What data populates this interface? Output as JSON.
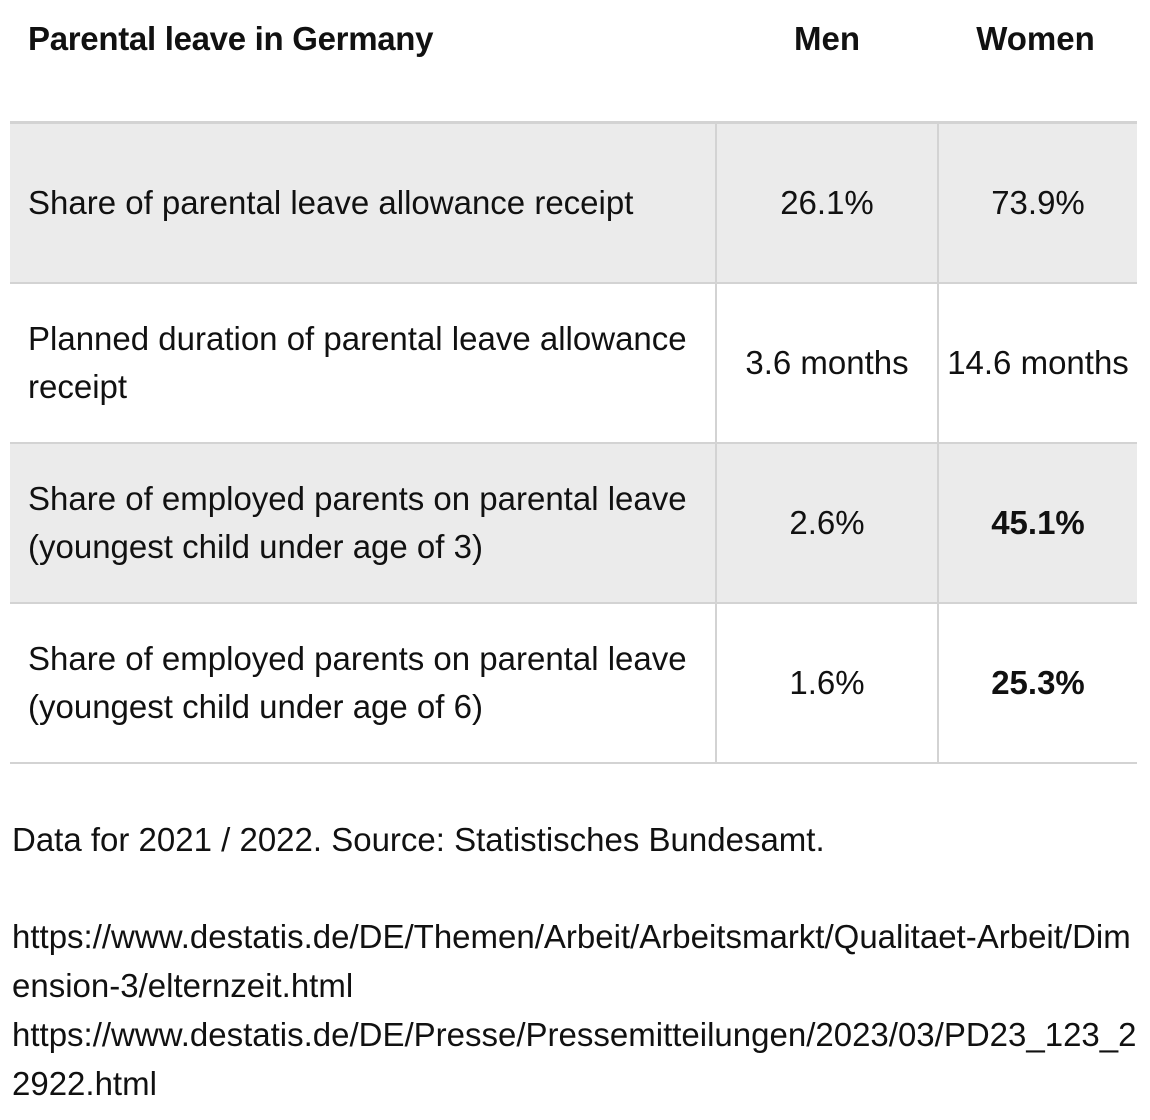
{
  "header": {
    "title": "Parental leave in Germany",
    "col_men": "Men",
    "col_women": "Women"
  },
  "rows": [
    {
      "label": "Share of parental leave allowance receipt",
      "men": "26.1%",
      "women": "73.9%",
      "shaded": true,
      "women_bold": false
    },
    {
      "label": "Planned duration of parental leave allowance receipt",
      "men": "3.6 months",
      "women": "14.6 months",
      "shaded": false,
      "women_bold": false
    },
    {
      "label": "Share of employed parents on parental leave (youngest child under age of 3)",
      "men": "2.6%",
      "women": "45.1%",
      "shaded": true,
      "women_bold": true
    },
    {
      "label": "Share of employed parents on parental leave (youngest child under age of 6)",
      "men": "1.6%",
      "women": "25.3%",
      "shaded": false,
      "women_bold": true
    }
  ],
  "footer": {
    "note": "Data for 2021 / 2022. Source: Statistisches Bundesamt.",
    "links": [
      "https://www.destatis.de/DE/Themen/Arbeit/Arbeitsmarkt/Qualitaet-Arbeit/Dimension-3/elternzeit.html",
      "https://www.destatis.de/DE/Presse/Pressemitteilungen/2023/03/PD23_123_22922.html"
    ]
  }
}
